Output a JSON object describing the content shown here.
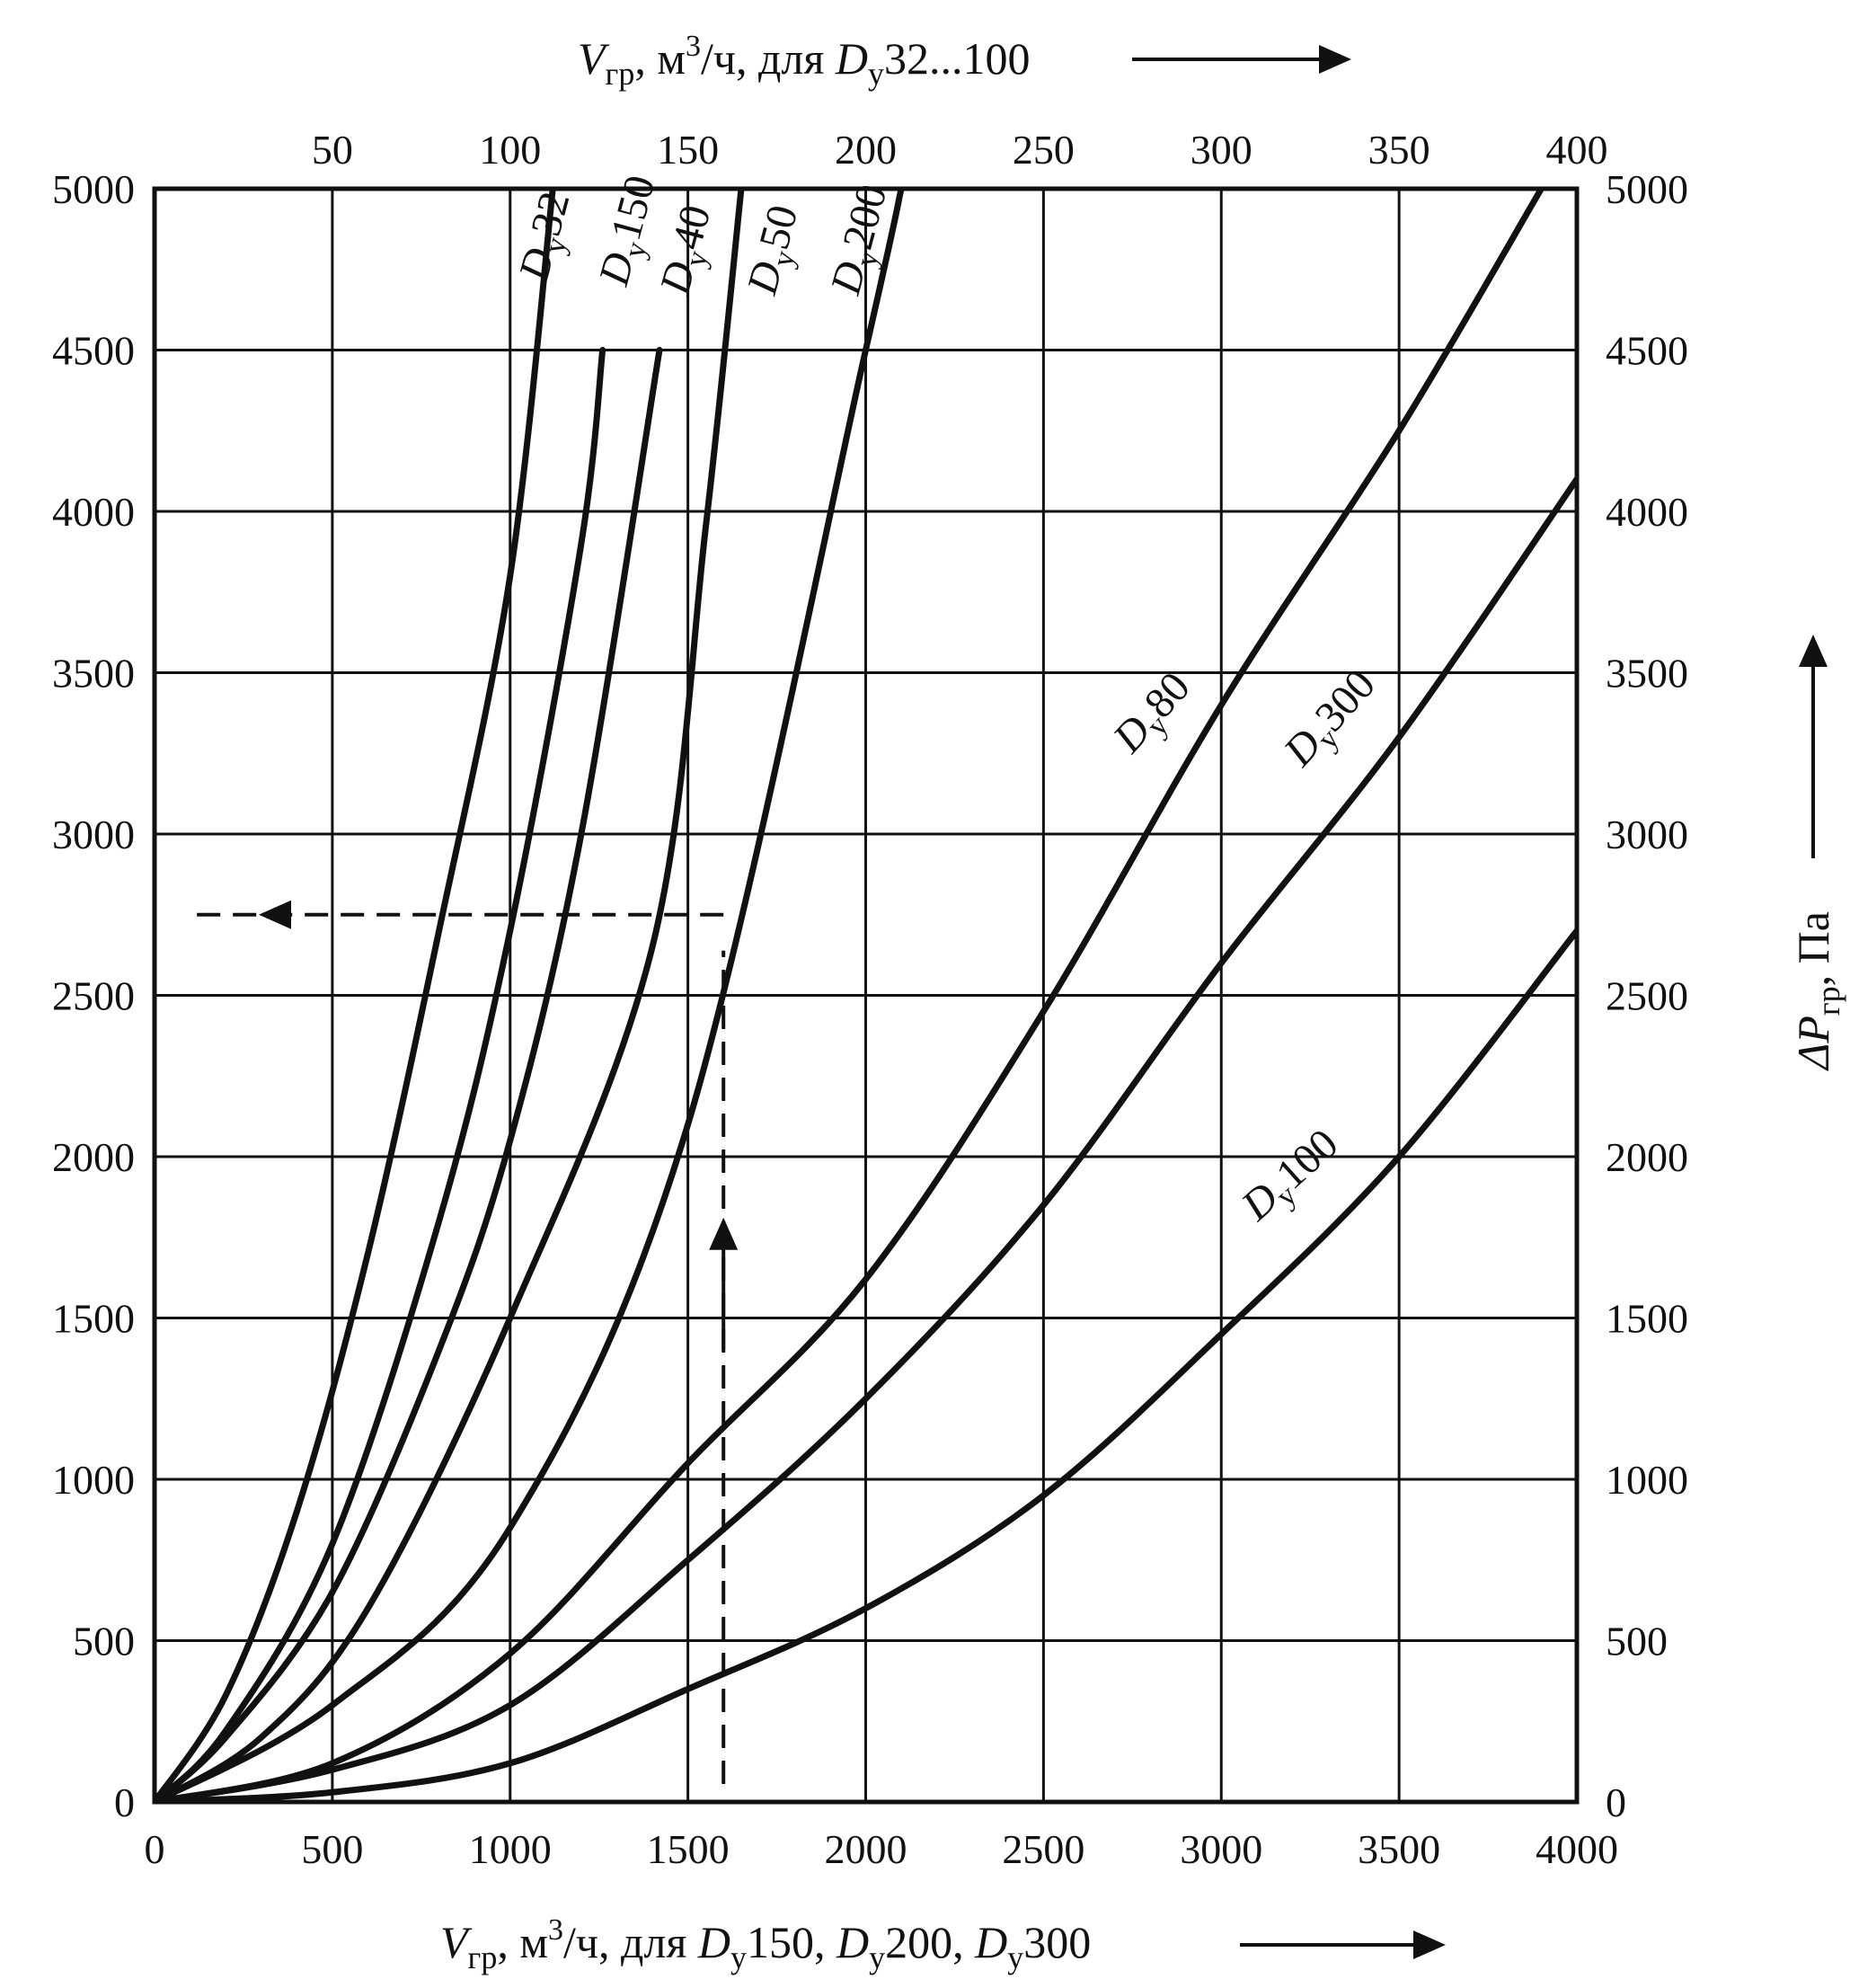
{
  "chart_data": {
    "type": "line",
    "x_bottom": {
      "label_parts": [
        "V",
        "гр",
        ", м",
        "3",
        "/ч, для ",
        "D",
        "у",
        "150, ",
        "D",
        "у",
        "200, ",
        "D",
        "у",
        "300"
      ],
      "range": [
        0,
        4000
      ],
      "ticks": [
        "0",
        "500",
        "1000",
        "1500",
        "2000",
        "2500",
        "3000",
        "3500",
        "4000"
      ]
    },
    "x_top": {
      "label_parts": [
        "V",
        "гр",
        ", м",
        "3",
        "/ч, для ",
        "D",
        "у",
        "32...100"
      ],
      "range": [
        0,
        400
      ],
      "ticks": [
        "50",
        "100",
        "150",
        "200",
        "250",
        "300",
        "350",
        "400"
      ]
    },
    "y": {
      "label_parts": [
        "ΔP",
        "гр",
        ", Па"
      ],
      "range": [
        0,
        5000
      ],
      "ticks": [
        "0",
        "500",
        "1000",
        "1500",
        "2000",
        "2500",
        "3000",
        "3500",
        "4000",
        "4500",
        "5000"
      ]
    },
    "grid": true,
    "series": [
      {
        "name": "Dy32",
        "label": [
          "D",
          "у",
          "32"
        ],
        "axis": "top",
        "x": [
          0,
          20,
          40,
          60,
          80,
          100,
          112
        ],
        "y": [
          0,
          330,
          900,
          1700,
          2700,
          3800,
          5000
        ]
      },
      {
        "name": "Dy150",
        "label": [
          "D",
          "у",
          "150"
        ],
        "axis": "bottom",
        "x": [
          0,
          200,
          500,
          800,
          1000,
          1200,
          1260
        ],
        "y": [
          0,
          220,
          800,
          1800,
          2700,
          3900,
          4500
        ]
      },
      {
        "name": "Dy40",
        "label": [
          "D",
          "у",
          "40"
        ],
        "axis": "top",
        "x": [
          0,
          20,
          50,
          80,
          100,
          120,
          142
        ],
        "y": [
          0,
          200,
          650,
          1400,
          2050,
          3000,
          4500
        ]
      },
      {
        "name": "Dy50",
        "label": [
          "D",
          "у",
          "50"
        ],
        "axis": "top",
        "x": [
          0,
          30,
          60,
          100,
          140,
          155,
          165
        ],
        "y": [
          0,
          200,
          600,
          1500,
          2650,
          3950,
          5000
        ]
      },
      {
        "name": "Dy200",
        "label": [
          "D",
          "у",
          "200"
        ],
        "axis": "bottom",
        "x": [
          0,
          500,
          1000,
          1500,
          2000,
          2100
        ],
        "y": [
          0,
          300,
          850,
          2100,
          4500,
          5000
        ]
      },
      {
        "name": "Dy80",
        "label": [
          "D",
          "у",
          "80"
        ],
        "axis": "top",
        "x": [
          0,
          50,
          100,
          150,
          200,
          250,
          300,
          350,
          390
        ],
        "y": [
          0,
          120,
          460,
          1050,
          1620,
          2450,
          3400,
          4250,
          5000
        ]
      },
      {
        "name": "Dy300",
        "label": [
          "D",
          "у",
          "300"
        ],
        "axis": "bottom",
        "x": [
          0,
          500,
          1000,
          1500,
          2000,
          2500,
          3000,
          3500,
          4000
        ],
        "y": [
          0,
          100,
          300,
          750,
          1250,
          1850,
          2600,
          3300,
          4100
        ]
      },
      {
        "name": "Dy100",
        "label": [
          "D",
          "у",
          "100"
        ],
        "axis": "top",
        "x": [
          0,
          50,
          100,
          150,
          200,
          250,
          300,
          350,
          400
        ],
        "y": [
          0,
          30,
          120,
          350,
          600,
          950,
          1450,
          2000,
          2700
        ]
      }
    ],
    "example_path": {
      "x": 1600,
      "y": 2750
    }
  }
}
